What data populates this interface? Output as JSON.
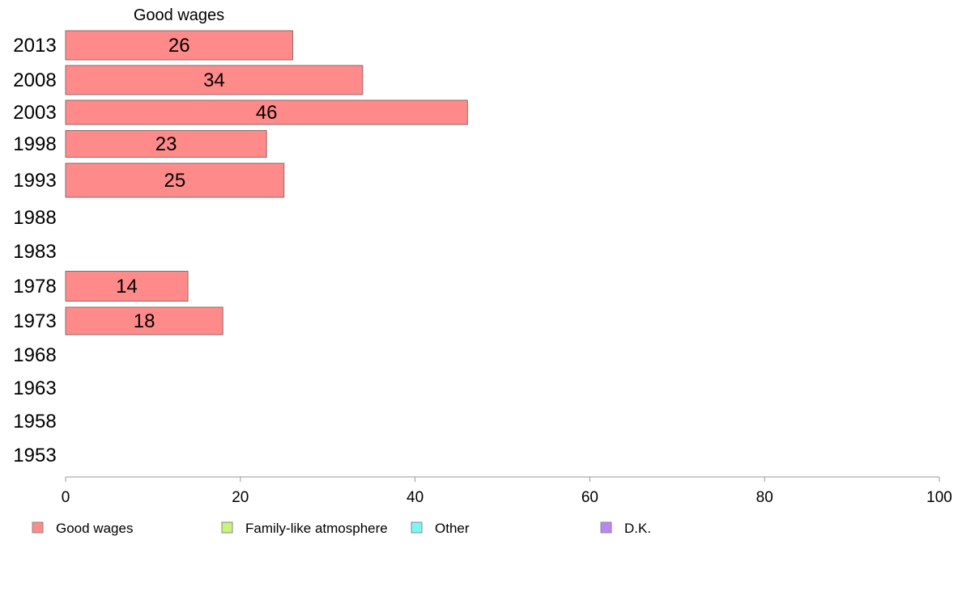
{
  "chart_data": {
    "type": "bar",
    "orientation": "horizontal",
    "title": "Good wages",
    "categories": [
      "2013",
      "2008",
      "2003",
      "1998",
      "1993",
      "1988",
      "1983",
      "1978",
      "1973",
      "1968",
      "1963",
      "1958",
      "1953"
    ],
    "series": [
      {
        "name": "Good wages",
        "color": "#ff8a8a",
        "values": [
          26,
          34,
          46,
          23,
          25,
          null,
          null,
          14,
          18,
          null,
          null,
          null,
          null
        ]
      }
    ],
    "xlim": [
      0,
      100
    ],
    "xticks": [
      0,
      20,
      40,
      60,
      80,
      100
    ],
    "legend": [
      {
        "label": "Good wages",
        "color": "#ff8a8a"
      },
      {
        "label": "Family-like atmosphere",
        "color": "#c6f57a"
      },
      {
        "label": "Other",
        "color": "#7cf5f5"
      },
      {
        "label": "D.K.",
        "color": "#b987f5"
      }
    ],
    "legend_position": "bottom",
    "grid": false
  }
}
